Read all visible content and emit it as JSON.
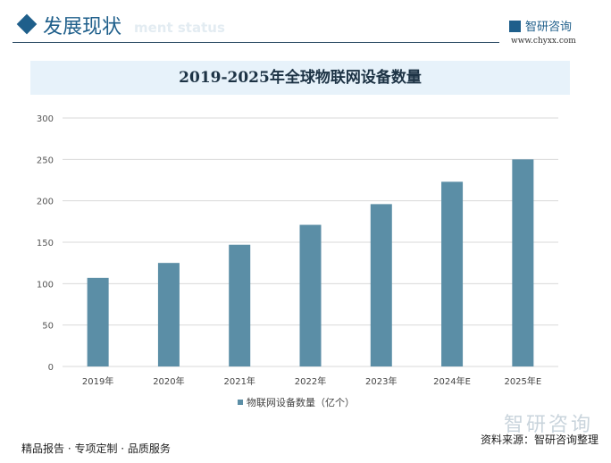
{
  "header": {
    "title": "发展现状",
    "subtitle_ghost": "ment status",
    "brand": "智研咨询",
    "url": "www.chyxx.com"
  },
  "chart_data": {
    "type": "bar",
    "title": "2019-2025年全球物联网设备数量",
    "categories": [
      "2019年",
      "2020年",
      "2021年",
      "2022年",
      "2023年",
      "2024年E",
      "2025年E"
    ],
    "series": [
      {
        "name": "物联网设备数量（亿个）",
        "values": [
          107,
          125,
          147,
          171,
          196,
          223,
          250
        ],
        "color": "#5b8ea6"
      }
    ],
    "ylim": [
      0,
      300
    ],
    "yticks": [
      "0",
      "50",
      "100",
      "150",
      "200",
      "250",
      "300"
    ],
    "grid": true,
    "legend": "bottom"
  },
  "footer": {
    "left": "精品报告 · 专项定制 · 品质服务",
    "source": "资料来源：智研咨询整理",
    "watermark": "智研咨询"
  }
}
